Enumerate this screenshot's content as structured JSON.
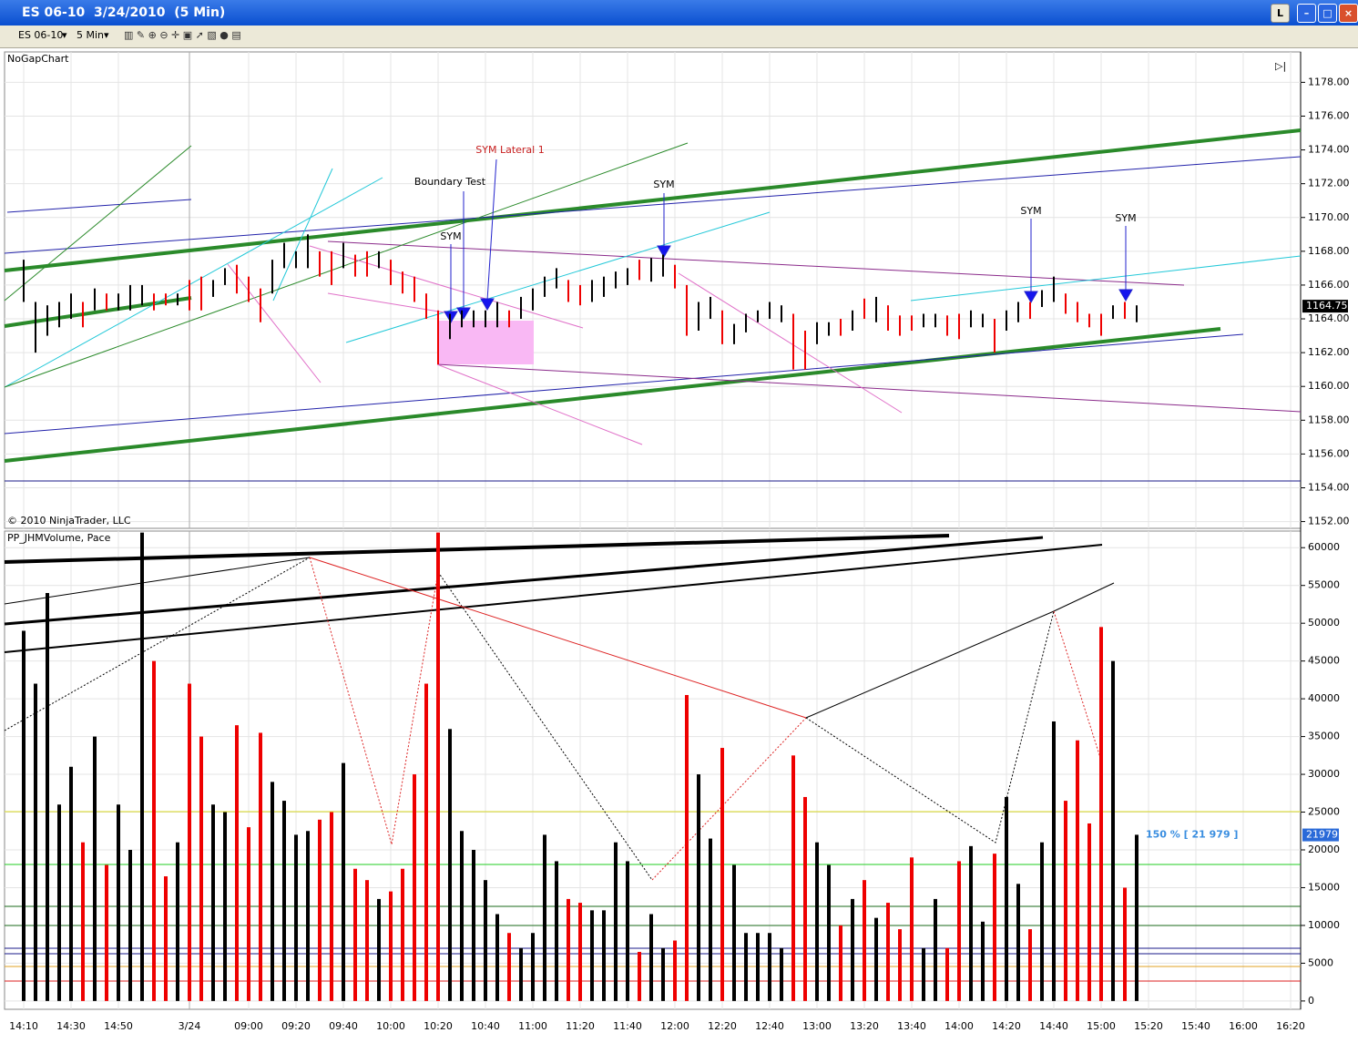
{
  "window": {
    "title": "ES 06-10  3/24/2010  (5 Min)",
    "button": "L"
  },
  "toolbar": {
    "instrument": "ES 06-10",
    "interval": "5 Min"
  },
  "time_axis": [
    "14:10",
    null,
    null,
    null,
    "14:30",
    null,
    null,
    null,
    "14:50",
    null,
    null,
    null,
    null,
    null,
    "3/24",
    null,
    null,
    null,
    null,
    "09:00",
    null,
    null,
    null,
    "09:20",
    null,
    null,
    null,
    "09:40",
    null,
    null,
    null,
    "10:00",
    null,
    null,
    null,
    "10:20",
    null,
    null,
    null,
    "10:40",
    null,
    null,
    null,
    "11:00",
    null,
    null,
    null,
    "11:20",
    null,
    null,
    null,
    "11:40",
    null,
    null,
    null,
    "12:00",
    null,
    null,
    null,
    "12:20",
    null,
    null,
    null,
    "12:40",
    null,
    null,
    null,
    "13:00",
    null,
    null,
    null,
    "13:20",
    null,
    null,
    null,
    "13:40",
    null,
    null,
    null,
    "14:00",
    null,
    null,
    null,
    "14:20",
    null,
    null,
    null,
    "14:40",
    null,
    null,
    null,
    "15:00",
    null,
    null,
    null,
    "15:20",
    null,
    null,
    null,
    "15:40",
    null,
    null,
    null,
    "16:00",
    null,
    null,
    null,
    "16:20"
  ],
  "chart_data": [
    {
      "type": "hilo",
      "title": "NoGapChart",
      "footer": "© 2010 NinjaTrader, LLC",
      "annotations": [
        "SYM Lateral 1",
        "Boundary Test",
        "SYM",
        "SYM",
        "SYM",
        "SYM"
      ],
      "last_price": {
        "value": 1164.75,
        "label": "1164.75"
      },
      "ylim": [
        1151.6,
        1179.8
      ],
      "yticks": [
        {
          "value": 1152,
          "label": "1152.00"
        },
        {
          "value": 1154,
          "label": "1154.00"
        },
        {
          "value": 1156,
          "label": "1156.00"
        },
        {
          "value": 1158,
          "label": "1158.00"
        },
        {
          "value": 1160,
          "label": "1160.00"
        },
        {
          "value": 1162,
          "label": "1162.00"
        },
        {
          "value": 1164,
          "label": "1164.00"
        },
        {
          "value": 1166,
          "label": "1166.00"
        },
        {
          "value": 1168,
          "label": "1168.00"
        },
        {
          "value": 1170,
          "label": "1170.00"
        },
        {
          "value": 1172,
          "label": "1172.00"
        },
        {
          "value": 1174,
          "label": "1174.00"
        },
        {
          "value": 1176,
          "label": "1176.00"
        },
        {
          "value": 1178,
          "label": "1178.00"
        }
      ],
      "lows": [
        1165,
        1162,
        1163,
        1163.5,
        1164,
        1163.5,
        1164.5,
        1164.5,
        1164.5,
        1164.5,
        1164.8,
        1164.5,
        1164.8,
        1164.8,
        1164.5,
        1164.5,
        1165.3,
        1166,
        1165.5,
        1165,
        1163.8,
        1165.5,
        1167,
        1167,
        1167,
        1166.5,
        1166,
        1167,
        1166.5,
        1166.5,
        1167,
        1166,
        1165.5,
        1165,
        1164,
        1161.3,
        1162.8,
        1163.5,
        1163.5,
        1163.5,
        1163.5,
        1163.5,
        1164,
        1164.5,
        1165.3,
        1165.8,
        1165,
        1164.8,
        1165,
        1165.3,
        1165.8,
        1166,
        1166.3,
        1166.2,
        1166.5,
        1165.8,
        1163,
        1163.3,
        1164,
        1162.5,
        1162.5,
        1163.2,
        1163.8,
        1164,
        1163.8,
        1161,
        1161,
        1162.5,
        1163,
        1163,
        1163.3,
        1164,
        1163.8,
        1163.3,
        1163,
        1163.3,
        1163.5,
        1163.5,
        1163,
        1162.8,
        1163.5,
        1163.5,
        1162,
        1163.3,
        1163.8,
        1164,
        1164.7,
        1165,
        1164.3,
        1163.8,
        1163.5,
        1163,
        1164,
        1164,
        1163.8
      ],
      "highs": [
        1167.5,
        1165,
        1164.8,
        1165,
        1165.5,
        1165,
        1165.8,
        1165.5,
        1165.5,
        1166,
        1166,
        1165.5,
        1165.5,
        1165.5,
        1166.3,
        1166.5,
        1166.3,
        1167,
        1167.2,
        1166.5,
        1165.8,
        1167.5,
        1168.5,
        1168,
        1169,
        1168,
        1168,
        1168.5,
        1167.8,
        1168,
        1168,
        1167.5,
        1166.8,
        1166.5,
        1165.5,
        1164.5,
        1164.3,
        1164.5,
        1164.5,
        1164.5,
        1165,
        1164.5,
        1165.3,
        1165.8,
        1166.5,
        1167,
        1166.3,
        1166,
        1166.3,
        1166.5,
        1166.8,
        1167,
        1167.5,
        1167.6,
        1167.8,
        1167.2,
        1166,
        1165,
        1165.3,
        1164.5,
        1163.7,
        1164.3,
        1164.5,
        1165,
        1164.8,
        1164.3,
        1163.3,
        1163.8,
        1163.8,
        1164,
        1164.5,
        1165.2,
        1165.3,
        1164.8,
        1164.2,
        1164.2,
        1164.3,
        1164.3,
        1164.2,
        1164.3,
        1164.5,
        1164.3,
        1164,
        1164.5,
        1165,
        1165,
        1165.7,
        1166.5,
        1165.5,
        1165,
        1164.3,
        1164.3,
        1164.8,
        1165,
        1164.8
      ],
      "colors": [
        "#000",
        "#000",
        "#000",
        "#000",
        "#000",
        "#e00",
        "#000",
        "#e00",
        "#000",
        "#000",
        "#000",
        "#e00",
        "#e00",
        "#000",
        "#e00",
        "#e00",
        "#000",
        "#000",
        "#e00",
        "#e00",
        "#e00",
        "#000",
        "#000",
        "#000",
        "#000",
        "#e00",
        "#e00",
        "#000",
        "#e00",
        "#e00",
        "#000",
        "#e00",
        "#e00",
        "#e00",
        "#e00",
        "#e00",
        "#000",
        "#000",
        "#000",
        "#000",
        "#000",
        "#e00",
        "#000",
        "#000",
        "#000",
        "#000",
        "#e00",
        "#e00",
        "#000",
        "#000",
        "#000",
        "#000",
        "#e00",
        "#000",
        "#000",
        "#e00",
        "#e00",
        "#000",
        "#000",
        "#e00",
        "#000",
        "#000",
        "#000",
        "#000",
        "#000",
        "#e00",
        "#e00",
        "#000",
        "#000",
        "#e00",
        "#000",
        "#e00",
        "#000",
        "#e00",
        "#e00",
        "#e00",
        "#000",
        "#000",
        "#e00",
        "#e00",
        "#000",
        "#000",
        "#e00",
        "#000",
        "#000",
        "#e00",
        "#000",
        "#000",
        "#e00",
        "#e00",
        "#e00",
        "#e00",
        "#000",
        "#e00",
        "#000"
      ]
    },
    {
      "type": "bar",
      "title": "PP_JHMVolume, Pace",
      "pace_label": "150 % [ 21 979 ]",
      "last_value": 21979,
      "ylim": [
        -1100,
        62200
      ],
      "yticks": [
        0,
        5000,
        10000,
        15000,
        20000,
        25000,
        30000,
        35000,
        40000,
        45000,
        50000,
        55000,
        60000
      ],
      "values": [
        49000,
        42000,
        54000,
        26000,
        31000,
        21000,
        35000,
        18000,
        26000,
        20000,
        62000,
        45000,
        16500,
        21000,
        42000,
        35000,
        26000,
        25000,
        36500,
        23000,
        35500,
        29000,
        26500,
        22000,
        22500,
        24000,
        25000,
        31500,
        17500,
        16000,
        13500,
        14500,
        17500,
        30000,
        42000,
        62000,
        36000,
        22500,
        20000,
        16000,
        11500,
        9000,
        7000,
        9000,
        22000,
        18500,
        13500,
        13000,
        12000,
        12000,
        21000,
        18500,
        6500,
        11500,
        7000,
        8000,
        40500,
        30000,
        21500,
        33500,
        18000,
        9000,
        9000,
        9000,
        7000,
        32500,
        27000,
        21000,
        18000,
        10000,
        13500,
        16000,
        11000,
        13000,
        9500,
        19000,
        7000,
        13500,
        7000,
        18500,
        20500,
        10500,
        19500,
        27000,
        15500,
        9500,
        21000,
        37000,
        26500,
        34500,
        23500,
        49500,
        45000,
        15000,
        22000
      ],
      "colors": [
        "#000",
        "#000",
        "#000",
        "#000",
        "#000",
        "#e00",
        "#000",
        "#e00",
        "#000",
        "#000",
        "#000",
        "#e00",
        "#e00",
        "#000",
        "#e00",
        "#e00",
        "#000",
        "#000",
        "#e00",
        "#e00",
        "#e00",
        "#000",
        "#000",
        "#000",
        "#000",
        "#e00",
        "#e00",
        "#000",
        "#e00",
        "#e00",
        "#000",
        "#e00",
        "#e00",
        "#e00",
        "#e00",
        "#e00",
        "#000",
        "#000",
        "#000",
        "#000",
        "#000",
        "#e00",
        "#000",
        "#000",
        "#000",
        "#000",
        "#e00",
        "#e00",
        "#000",
        "#000",
        "#000",
        "#000",
        "#e00",
        "#000",
        "#000",
        "#e00",
        "#e00",
        "#000",
        "#000",
        "#e00",
        "#000",
        "#000",
        "#000",
        "#000",
        "#000",
        "#e00",
        "#e00",
        "#000",
        "#000",
        "#e00",
        "#000",
        "#e00",
        "#000",
        "#e00",
        "#e00",
        "#e00",
        "#000",
        "#000",
        "#e00",
        "#e00",
        "#000",
        "#000",
        "#e00",
        "#000",
        "#000",
        "#e00",
        "#000",
        "#000",
        "#e00",
        "#e00",
        "#e00",
        "#e00",
        "#000",
        "#e00",
        "#000"
      ]
    }
  ]
}
